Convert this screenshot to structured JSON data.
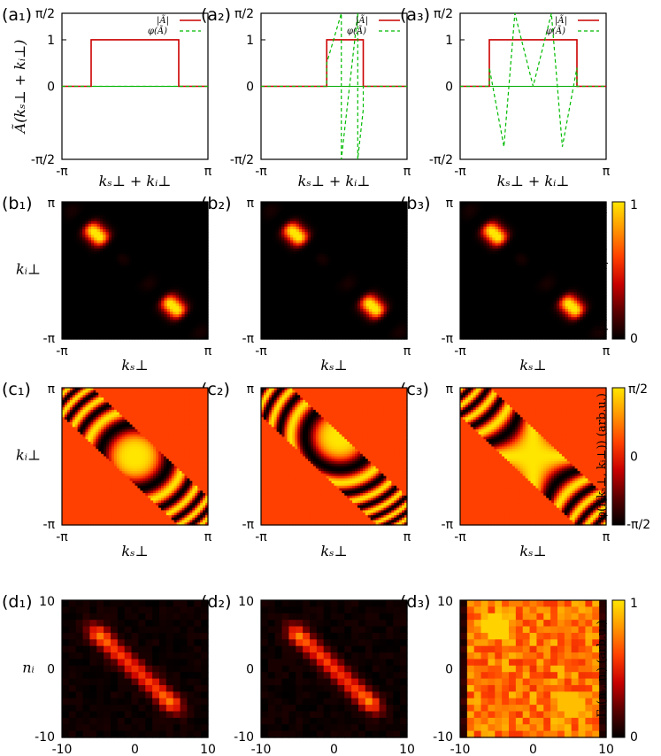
{
  "panel_labels": {
    "a": [
      "(a₁)",
      "(a₂)",
      "(a₃)"
    ],
    "b": [
      "(b₁)",
      "(b₂)",
      "(b₃)"
    ],
    "c": [
      "(c₁)",
      "(c₂)",
      "(c₃)"
    ],
    "d": [
      "(d₁)",
      "(d₂)",
      "(d₃)"
    ]
  },
  "row_a": {
    "ylabel": "Ã(kₛ⊥ + kᵢ⊥)",
    "xlabel": "kₛ⊥ + kᵢ⊥",
    "yticks": [
      "π/2",
      "1",
      "0",
      "-π/2"
    ],
    "xticks": [
      "-π",
      "π"
    ],
    "legend": [
      "|Ã|",
      "φ(Ã)"
    ]
  },
  "row_b": {
    "ylabel": "kᵢ⊥",
    "xlabel": "kₛ⊥",
    "yticks": [
      "π",
      "-π"
    ],
    "xticks": [
      "-π",
      "π"
    ],
    "colorbar_label": "|f(kₛ⊥, kᵢ⊥)|² (arb.u.)",
    "colorbar_ticks": [
      "1",
      "0"
    ]
  },
  "row_c": {
    "ylabel": "kᵢ⊥",
    "xlabel": "kₛ⊥",
    "yticks": [
      "π",
      "-π"
    ],
    "xticks": [
      "-π",
      "π"
    ],
    "colorbar_label": "φ(f(kₛ⊥, kᵢ⊥)) (arb.u.)",
    "colorbar_ticks": [
      "π/2",
      "0",
      "-π/2"
    ]
  },
  "row_d": {
    "ylabel": "nᵢ",
    "xlabel": "nₛ",
    "yticks": [
      "10",
      "0",
      "-10"
    ],
    "xticks": [
      "-10",
      "0",
      "10"
    ],
    "colorbar_label": "Γₙ(nₛ, nᵢ) (arb.u.)",
    "colorbar_ticks": [
      "1",
      "0"
    ]
  },
  "colors": {
    "amplitude": "#cc0000",
    "phase": "#00bb00",
    "colormap": [
      "#000000",
      "#5a0000",
      "#b40000",
      "#ff1e00",
      "#ff6e00",
      "#ffaa00",
      "#ffe000",
      "#ffff40"
    ]
  },
  "chart_data": [
    {
      "type": "line",
      "panel": "a1",
      "x": [
        -3.1416,
        -1.885,
        -1.885,
        0.0,
        1.885,
        1.885,
        3.1416
      ],
      "series": [
        {
          "name": "|Ã|",
          "values": [
            0,
            0,
            1,
            1,
            1,
            0,
            0
          ]
        },
        {
          "name": "φ(Ã)",
          "values": [
            0,
            0,
            0,
            0,
            0,
            0,
            0
          ]
        }
      ],
      "xlim": [
        -3.1416,
        3.1416
      ],
      "ylim": [
        -1.5708,
        1.5708
      ]
    },
    {
      "type": "line",
      "panel": "a2",
      "x": [
        -3.1416,
        -0.314,
        -0.314,
        0.0,
        0.942,
        1.257,
        1.257,
        3.1416
      ],
      "series": [
        {
          "name": "|Ã|",
          "values": [
            0,
            0,
            1,
            1,
            1,
            1,
            0,
            0
          ]
        },
        {
          "name": "φ(Ã)",
          "phase_points": [
            [
              -3.1416,
              0
            ],
            [
              -0.314,
              0
            ],
            [
              -0.314,
              0.5
            ],
            [
              0.314,
              1.57
            ],
            [
              0.314,
              -1.57
            ],
            [
              1.02,
              1.57
            ],
            [
              1.02,
              -1.57
            ],
            [
              1.257,
              -0.5
            ],
            [
              1.257,
              0
            ],
            [
              3.1416,
              0
            ]
          ]
        }
      ],
      "xlim": [
        -3.1416,
        3.1416
      ],
      "ylim": [
        -1.5708,
        1.5708
      ]
    },
    {
      "type": "line",
      "panel": "a3",
      "x": [
        -3.1416,
        -1.885,
        -1.885,
        1.885,
        1.885,
        3.1416
      ],
      "series": [
        {
          "name": "|Ã|",
          "values": [
            0,
            0,
            1,
            1,
            0,
            0
          ]
        },
        {
          "name": "φ(Ã)",
          "phase_points": [
            [
              -3.1416,
              0
            ],
            [
              -1.885,
              0
            ],
            [
              -1.885,
              0.4
            ],
            [
              -1.257,
              -1.3
            ],
            [
              -0.786,
              1.57
            ],
            [
              0.0,
              0.0
            ],
            [
              0.786,
              1.57
            ],
            [
              1.257,
              -1.3
            ],
            [
              1.885,
              0.4
            ],
            [
              1.885,
              0
            ],
            [
              3.1416,
              0
            ]
          ]
        }
      ],
      "xlim": [
        -3.1416,
        3.1416
      ],
      "ylim": [
        -1.5708,
        1.5708
      ]
    },
    {
      "type": "heatmap",
      "rows": "b",
      "description_values": "two elongated lobes along the anti-diagonal centered near (-1.7, 1.7) and (1.7, -1.7)",
      "xlim": [
        -3.1416,
        3.1416
      ],
      "ylim": [
        -3.1416,
        3.1416
      ],
      "zlim": [
        0,
        1
      ]
    },
    {
      "type": "heatmap",
      "rows": "c",
      "xlim": [
        -3.1416,
        3.1416
      ],
      "ylim": [
        -3.1416,
        3.1416
      ],
      "zlim": [
        -1.5708,
        1.5708
      ]
    },
    {
      "type": "heatmap",
      "rows": "d",
      "xlim": [
        -10,
        10
      ],
      "ylim": [
        -10,
        10
      ],
      "zlim": [
        0,
        1
      ]
    }
  ]
}
